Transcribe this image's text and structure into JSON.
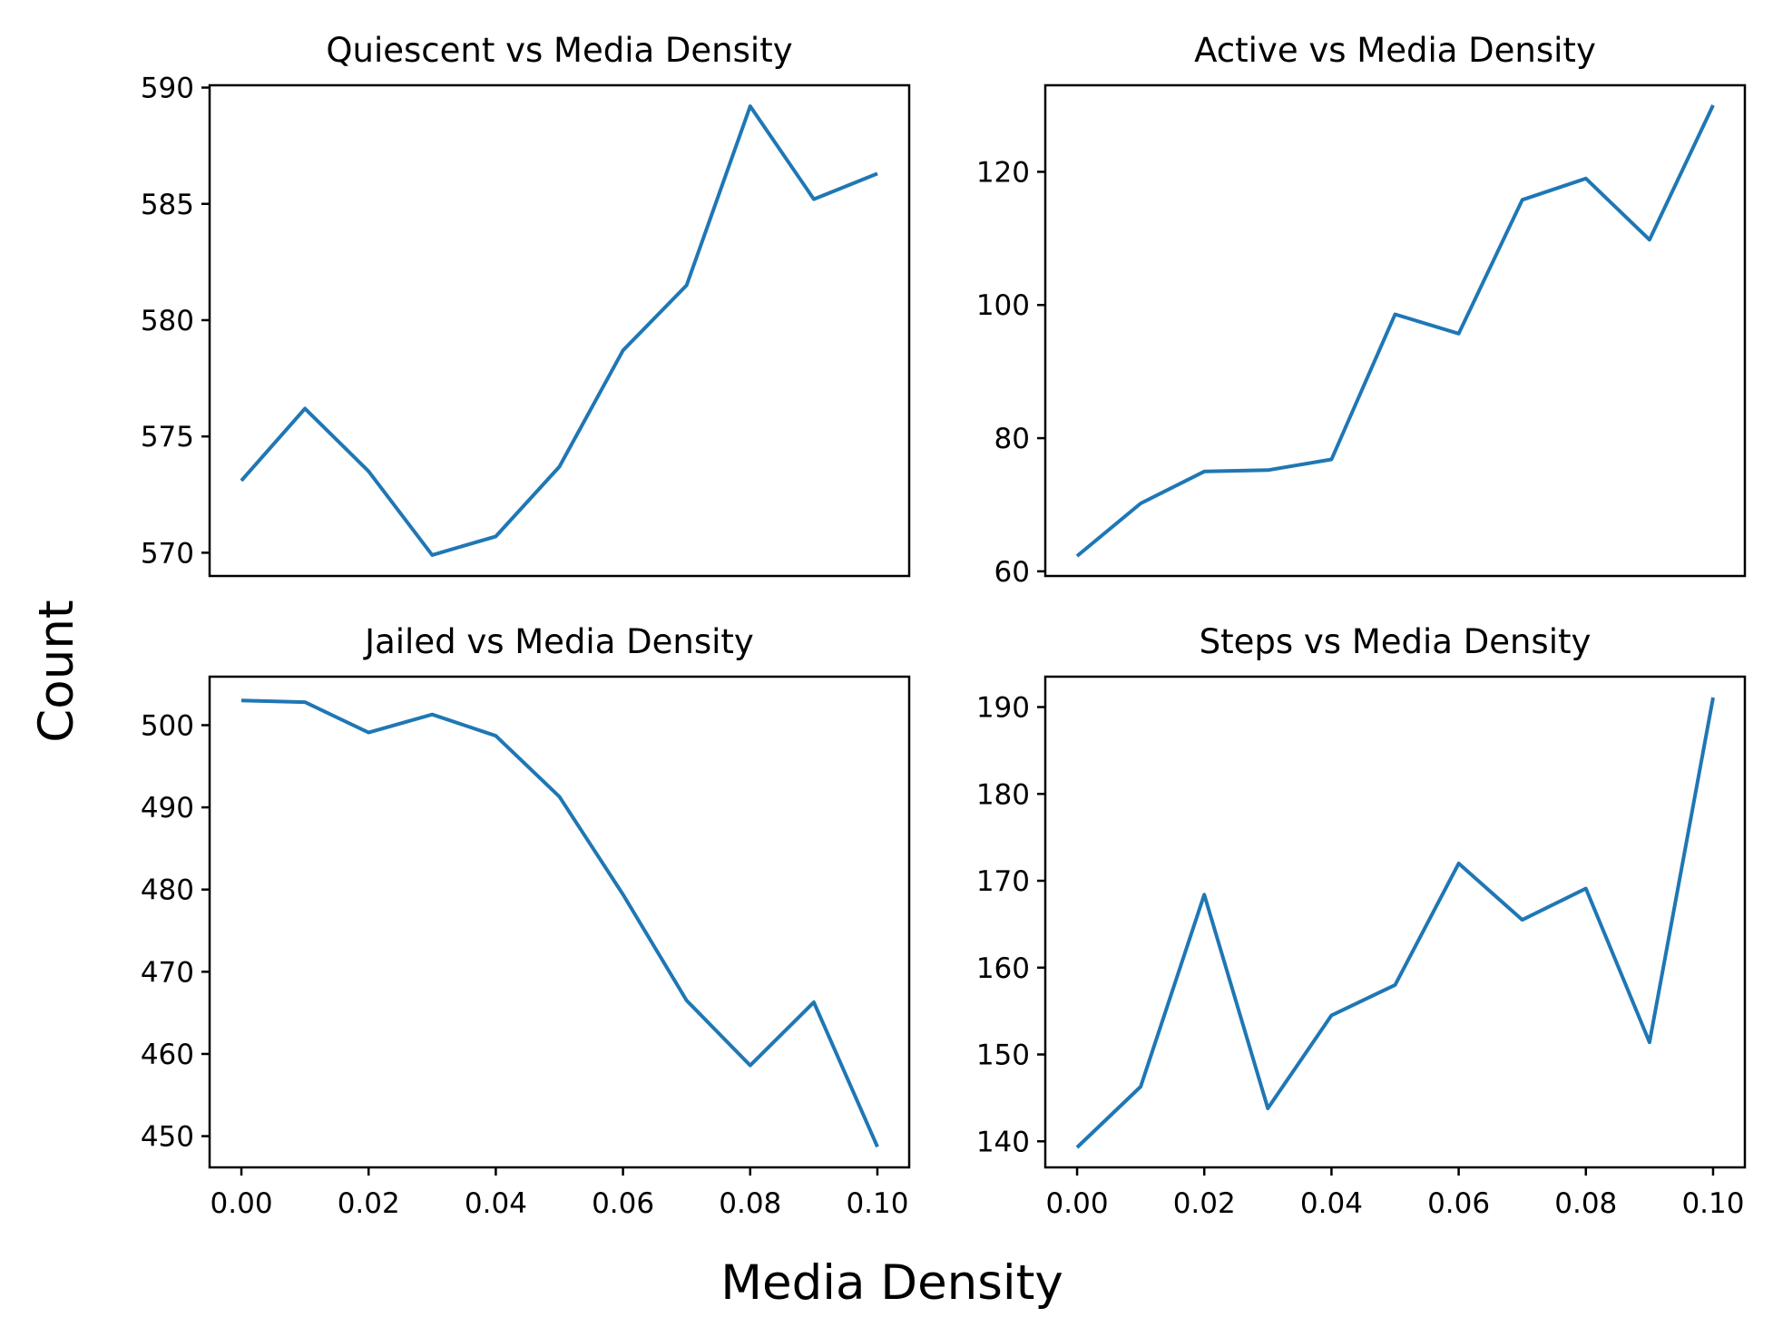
{
  "figure": {
    "xlabel": "Media Density",
    "ylabel": "Count",
    "line_color": "#1f77b4"
  },
  "chart_data": [
    {
      "type": "line",
      "title": "Quiescent vs Media Density",
      "xlabel": "",
      "ylabel": "",
      "x": [
        0.0,
        0.01,
        0.02,
        0.03,
        0.04,
        0.05,
        0.06,
        0.07,
        0.08,
        0.09,
        0.1
      ],
      "series": [
        {
          "values": [
            573.1,
            576.2,
            573.5,
            569.9,
            570.7,
            573.7,
            578.7,
            581.5,
            589.2,
            585.2,
            586.3
          ]
        }
      ],
      "xlim": [
        -0.005,
        0.105
      ],
      "ylim": [
        569.0,
        590.1
      ],
      "yticks": [
        570,
        575,
        580,
        585,
        590
      ],
      "ytick_labels": [
        "570",
        "575",
        "580",
        "585",
        "590"
      ],
      "xticks": [],
      "xtick_labels": [],
      "grid": false,
      "legend": "none"
    },
    {
      "type": "line",
      "title": "Active vs Media Density",
      "xlabel": "",
      "ylabel": "",
      "x": [
        0.0,
        0.01,
        0.02,
        0.03,
        0.04,
        0.05,
        0.06,
        0.07,
        0.08,
        0.09,
        0.1
      ],
      "series": [
        {
          "values": [
            62.3,
            70.2,
            75.0,
            75.2,
            76.8,
            98.6,
            95.7,
            115.8,
            119.0,
            109.8,
            130.0
          ]
        }
      ],
      "xlim": [
        -0.005,
        0.105
      ],
      "ylim": [
        59.3,
        133.0
      ],
      "yticks": [
        60,
        80,
        100,
        120
      ],
      "ytick_labels": [
        "60",
        "80",
        "100",
        "120"
      ],
      "xticks": [],
      "xtick_labels": [],
      "grid": false,
      "legend": "none"
    },
    {
      "type": "line",
      "title": "Jailed vs Media Density",
      "xlabel": "",
      "ylabel": "",
      "x": [
        0.0,
        0.01,
        0.02,
        0.03,
        0.04,
        0.05,
        0.06,
        0.07,
        0.08,
        0.09,
        0.1
      ],
      "series": [
        {
          "values": [
            503.0,
            502.8,
            499.1,
            501.3,
            498.7,
            491.3,
            479.4,
            466.5,
            458.6,
            466.3,
            448.7
          ]
        }
      ],
      "xlim": [
        -0.005,
        0.105
      ],
      "ylim": [
        446.2,
        505.9
      ],
      "yticks": [
        450,
        460,
        470,
        480,
        490,
        500
      ],
      "ytick_labels": [
        "450",
        "460",
        "470",
        "480",
        "490",
        "500"
      ],
      "xticks": [
        0.0,
        0.02,
        0.04,
        0.06,
        0.08,
        0.1
      ],
      "xtick_labels": [
        "0.00",
        "0.02",
        "0.04",
        "0.06",
        "0.08",
        "0.10"
      ],
      "grid": false,
      "legend": "none"
    },
    {
      "type": "line",
      "title": "Steps vs Media Density",
      "xlabel": "",
      "ylabel": "",
      "x": [
        0.0,
        0.01,
        0.02,
        0.03,
        0.04,
        0.05,
        0.06,
        0.07,
        0.08,
        0.09,
        0.1
      ],
      "series": [
        {
          "values": [
            139.3,
            146.3,
            168.4,
            143.8,
            154.5,
            158.0,
            172.0,
            165.5,
            169.1,
            151.4,
            191.1
          ]
        }
      ],
      "xlim": [
        -0.005,
        0.105
      ],
      "ylim": [
        137.0,
        193.5
      ],
      "yticks": [
        140,
        150,
        160,
        170,
        180,
        190
      ],
      "ytick_labels": [
        "140",
        "150",
        "160",
        "170",
        "180",
        "190"
      ],
      "xticks": [
        0.0,
        0.02,
        0.04,
        0.06,
        0.08,
        0.1
      ],
      "xtick_labels": [
        "0.00",
        "0.02",
        "0.04",
        "0.06",
        "0.08",
        "0.10"
      ],
      "grid": false,
      "legend": "none"
    }
  ]
}
